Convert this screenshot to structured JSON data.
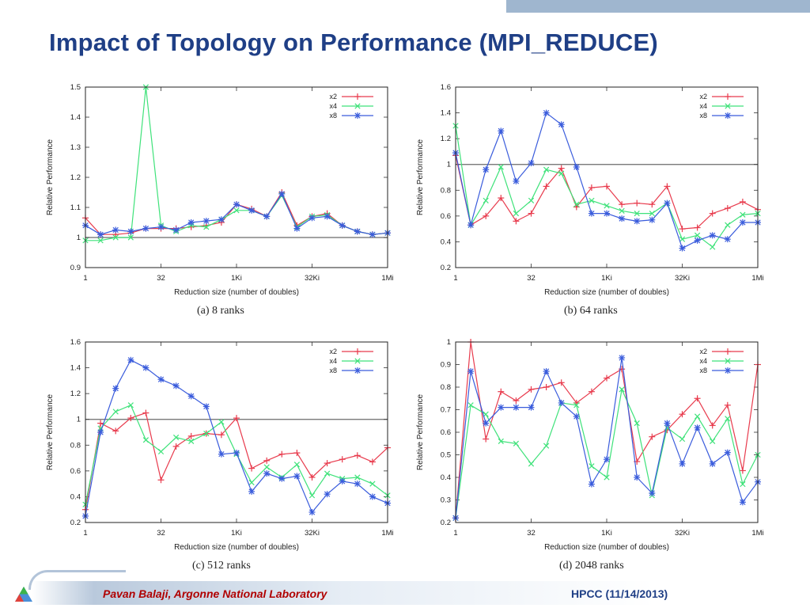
{
  "slide": {
    "title": "Impact of Topology on Performance (MPI_REDUCE)",
    "footer_left": "Pavan Balaji, Argonne National Laboratory",
    "footer_right": "HPCC (11/14/2013)"
  },
  "colors": {
    "x2": "#e83b4d",
    "x4": "#3fe27a",
    "x8": "#3a5cdc",
    "title": "#1f3f86"
  },
  "chart_data": [
    {
      "type": "line",
      "caption": "(a)  8 ranks",
      "xlabel": "Reduction size (number of doubles)",
      "ylabel": "Relative Performance",
      "xlim": [
        0,
        20
      ],
      "xticks": [
        {
          "pos": 0,
          "label": "1"
        },
        {
          "pos": 5,
          "label": "32"
        },
        {
          "pos": 10,
          "label": "1Ki"
        },
        {
          "pos": 15,
          "label": "32Ki"
        },
        {
          "pos": 20,
          "label": "1Mi"
        }
      ],
      "ylim": [
        0.9,
        1.5
      ],
      "yticks": [
        "0.9",
        "1",
        "1.1",
        "1.2",
        "1.3",
        "1.4",
        "1.5"
      ],
      "reference_line": 1,
      "legend_position": "top-right",
      "series": [
        {
          "name": "x2",
          "marker": "plus",
          "values": [
            1.065,
            1.01,
            1.01,
            1.015,
            1.03,
            1.03,
            1.03,
            1.035,
            1.04,
            1.05,
            1.11,
            1.095,
            1.07,
            1.15,
            1.04,
            1.07,
            1.08,
            1.04,
            1.02,
            1.01,
            1.015
          ]
        },
        {
          "name": "x4",
          "marker": "x",
          "values": [
            0.99,
            0.99,
            1.0,
            1.0,
            1.5,
            1.04,
            1.02,
            1.04,
            1.035,
            1.06,
            1.09,
            1.09,
            1.07,
            1.14,
            1.035,
            1.07,
            1.075,
            1.04,
            1.02,
            1.01,
            1.015
          ]
        },
        {
          "name": "x8",
          "marker": "star",
          "values": [
            1.04,
            1.01,
            1.025,
            1.02,
            1.03,
            1.035,
            1.025,
            1.05,
            1.055,
            1.06,
            1.11,
            1.09,
            1.07,
            1.145,
            1.03,
            1.065,
            1.07,
            1.04,
            1.02,
            1.01,
            1.015
          ]
        }
      ]
    },
    {
      "type": "line",
      "caption": "(b)  64 ranks",
      "xlabel": "Reduction size (number of doubles)",
      "ylabel": "Relative Performance",
      "xlim": [
        0,
        20
      ],
      "xticks": [
        {
          "pos": 0,
          "label": "1"
        },
        {
          "pos": 5,
          "label": "32"
        },
        {
          "pos": 10,
          "label": "1Ki"
        },
        {
          "pos": 15,
          "label": "32Ki"
        },
        {
          "pos": 20,
          "label": "1Mi"
        }
      ],
      "ylim": [
        0.2,
        1.6
      ],
      "yticks": [
        "0.2",
        "0.4",
        "0.6",
        "0.8",
        "1",
        "1.2",
        "1.4",
        "1.6"
      ],
      "reference_line": 1,
      "legend_position": "top-right",
      "series": [
        {
          "name": "x2",
          "marker": "plus",
          "values": [
            1.07,
            0.53,
            0.6,
            0.74,
            0.56,
            0.62,
            0.83,
            0.97,
            0.67,
            0.82,
            0.83,
            0.69,
            0.7,
            0.69,
            0.83,
            0.5,
            0.51,
            0.62,
            0.66,
            0.71,
            0.65
          ]
        },
        {
          "name": "x4",
          "marker": "x",
          "values": [
            1.3,
            0.53,
            0.72,
            0.98,
            0.62,
            0.72,
            0.96,
            0.93,
            0.69,
            0.72,
            0.68,
            0.64,
            0.62,
            0.62,
            0.7,
            0.42,
            0.45,
            0.36,
            0.53,
            0.61,
            0.62
          ]
        },
        {
          "name": "x8",
          "marker": "star",
          "values": [
            1.09,
            0.53,
            0.96,
            1.26,
            0.87,
            1.01,
            1.4,
            1.31,
            0.98,
            0.62,
            0.62,
            0.58,
            0.56,
            0.57,
            0.7,
            0.35,
            0.41,
            0.45,
            0.42,
            0.55,
            0.55
          ]
        }
      ]
    },
    {
      "type": "line",
      "caption": "(c)  512 ranks",
      "xlabel": "Reduction size (number of doubles)",
      "ylabel": "Relative Performance",
      "xlim": [
        0,
        20
      ],
      "xticks": [
        {
          "pos": 0,
          "label": "1"
        },
        {
          "pos": 5,
          "label": "32"
        },
        {
          "pos": 10,
          "label": "1Ki"
        },
        {
          "pos": 15,
          "label": "32Ki"
        },
        {
          "pos": 20,
          "label": "1Mi"
        }
      ],
      "ylim": [
        0.2,
        1.6
      ],
      "yticks": [
        "0.2",
        "0.4",
        "0.6",
        "0.8",
        "1",
        "1.2",
        "1.4",
        "1.6"
      ],
      "reference_line": 1,
      "legend_position": "top-right",
      "series": [
        {
          "name": "x2",
          "marker": "plus",
          "values": [
            0.3,
            0.97,
            0.91,
            1.01,
            1.05,
            0.53,
            0.79,
            0.87,
            0.89,
            0.88,
            1.01,
            0.62,
            0.68,
            0.73,
            0.74,
            0.55,
            0.66,
            0.69,
            0.72,
            0.67,
            0.78
          ]
        },
        {
          "name": "x4",
          "marker": "x",
          "values": [
            0.34,
            0.93,
            1.06,
            1.11,
            0.84,
            0.75,
            0.86,
            0.83,
            0.89,
            0.98,
            0.73,
            0.51,
            0.63,
            0.55,
            0.65,
            0.41,
            0.58,
            0.54,
            0.55,
            0.5,
            0.41
          ]
        },
        {
          "name": "x8",
          "marker": "star",
          "values": [
            0.25,
            0.9,
            1.24,
            1.46,
            1.4,
            1.31,
            1.26,
            1.18,
            1.1,
            0.73,
            0.74,
            0.44,
            0.58,
            0.54,
            0.56,
            0.28,
            0.42,
            0.52,
            0.5,
            0.4,
            0.35
          ]
        }
      ]
    },
    {
      "type": "line",
      "caption": "(d)  2048 ranks",
      "xlabel": "Reduction size (number of doubles)",
      "ylabel": "Relative Performance",
      "xlim": [
        0,
        20
      ],
      "xticks": [
        {
          "pos": 0,
          "label": "1"
        },
        {
          "pos": 5,
          "label": "32"
        },
        {
          "pos": 10,
          "label": "1Ki"
        },
        {
          "pos": 15,
          "label": "32Ki"
        },
        {
          "pos": 20,
          "label": "1Mi"
        }
      ],
      "ylim": [
        0.2,
        1.0
      ],
      "yticks": [
        "0.2",
        "0.3",
        "0.4",
        "0.5",
        "0.6",
        "0.7",
        "0.8",
        "0.9",
        "1"
      ],
      "reference_line": null,
      "legend_position": "top-right",
      "series": [
        {
          "name": "x2",
          "marker": "plus",
          "values": [
            0.22,
            1.0,
            0.57,
            0.78,
            0.74,
            0.79,
            0.8,
            0.82,
            0.73,
            0.78,
            0.84,
            0.88,
            0.47,
            0.58,
            0.61,
            0.68,
            0.75,
            0.63,
            0.72,
            0.43,
            0.9
          ]
        },
        {
          "name": "x4",
          "marker": "x",
          "values": [
            0.22,
            0.72,
            0.68,
            0.56,
            0.55,
            0.46,
            0.54,
            0.73,
            0.72,
            0.45,
            0.4,
            0.79,
            0.64,
            0.32,
            0.62,
            0.57,
            0.67,
            0.56,
            0.66,
            0.37,
            0.5
          ]
        },
        {
          "name": "x8",
          "marker": "star",
          "values": [
            0.22,
            0.87,
            0.64,
            0.71,
            0.71,
            0.71,
            0.87,
            0.73,
            0.67,
            0.37,
            0.48,
            0.93,
            0.4,
            0.33,
            0.64,
            0.46,
            0.62,
            0.46,
            0.51,
            0.29,
            0.38
          ]
        }
      ]
    }
  ]
}
